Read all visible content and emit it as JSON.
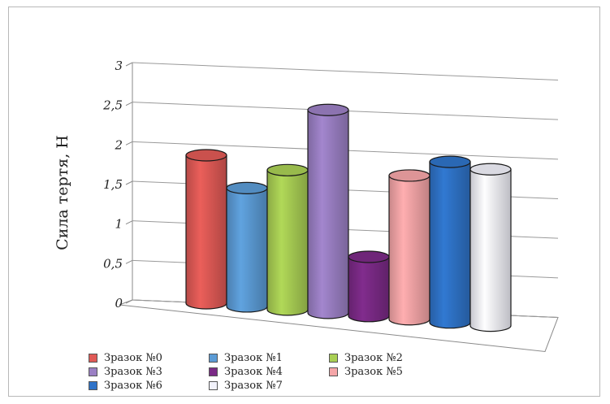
{
  "chart_data": {
    "type": "bar",
    "style": "3d-cylinder",
    "title": "",
    "ylabel": "Сила тертя, Н",
    "xlabel": "",
    "ylim": [
      0,
      3
    ],
    "yticks": [
      "0",
      "0,5",
      "1",
      "1,5",
      "2",
      "2,5",
      "3"
    ],
    "grid": true,
    "legend_position": "bottom",
    "series": [
      {
        "name": "Зразок №0",
        "value": 1.75,
        "color": "#e05a56"
      },
      {
        "name": "Зразок №1",
        "value": 1.4,
        "color": "#5b9bd5"
      },
      {
        "name": "Зразок №2",
        "value": 1.65,
        "color": "#a9cf54"
      },
      {
        "name": "Зразок №3",
        "value": 2.4,
        "color": "#9b80c4"
      },
      {
        "name": "Зразок №4",
        "value": 0.7,
        "color": "#7b2a86"
      },
      {
        "name": "Зразок №5",
        "value": 1.7,
        "color": "#f5a6a8"
      },
      {
        "name": "Зразок №6",
        "value": 1.9,
        "color": "#2f73c8"
      },
      {
        "name": "Зразок №7",
        "value": 1.85,
        "color": "#f2f2fb"
      }
    ],
    "legend_order": [
      0,
      1,
      2,
      3,
      4,
      5,
      6,
      7
    ]
  }
}
